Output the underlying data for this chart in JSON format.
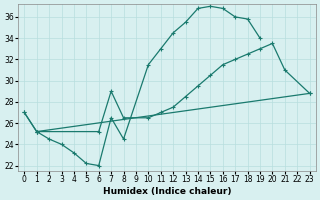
{
  "xlabel": "Humidex (Indice chaleur)",
  "bg_color": "#d8f0f0",
  "grid_color": "#b8dede",
  "line_color": "#1a7a6e",
  "xlim": [
    -0.5,
    23.5
  ],
  "ylim": [
    21.5,
    37.2
  ],
  "xticks": [
    0,
    1,
    2,
    3,
    4,
    5,
    6,
    7,
    8,
    9,
    10,
    11,
    12,
    13,
    14,
    15,
    16,
    17,
    18,
    19,
    20,
    21,
    22,
    23
  ],
  "yticks": [
    22,
    24,
    26,
    28,
    30,
    32,
    34,
    36
  ],
  "curve1_x": [
    0,
    1,
    2,
    3,
    4,
    5,
    6,
    7,
    8,
    10,
    11,
    12,
    13,
    14,
    15,
    16,
    17,
    18,
    19
  ],
  "curve1_y": [
    27.0,
    25.2,
    24.5,
    24.0,
    23.2,
    22.2,
    22.0,
    26.5,
    24.5,
    31.5,
    33.0,
    34.5,
    35.5,
    36.8,
    37.0,
    36.8,
    36.0,
    35.8,
    34.0
  ],
  "curve2_x": [
    0,
    1,
    6,
    7,
    8,
    10,
    11,
    12,
    13,
    14,
    15,
    16,
    17,
    18,
    19,
    20,
    21,
    23
  ],
  "curve2_y": [
    27.0,
    25.2,
    25.2,
    29.0,
    26.5,
    26.5,
    27.0,
    27.5,
    28.5,
    29.5,
    30.5,
    31.5,
    32.0,
    32.5,
    33.0,
    33.5,
    31.0,
    28.8
  ],
  "curve3_x": [
    1,
    23
  ],
  "curve3_y": [
    25.2,
    28.8
  ]
}
